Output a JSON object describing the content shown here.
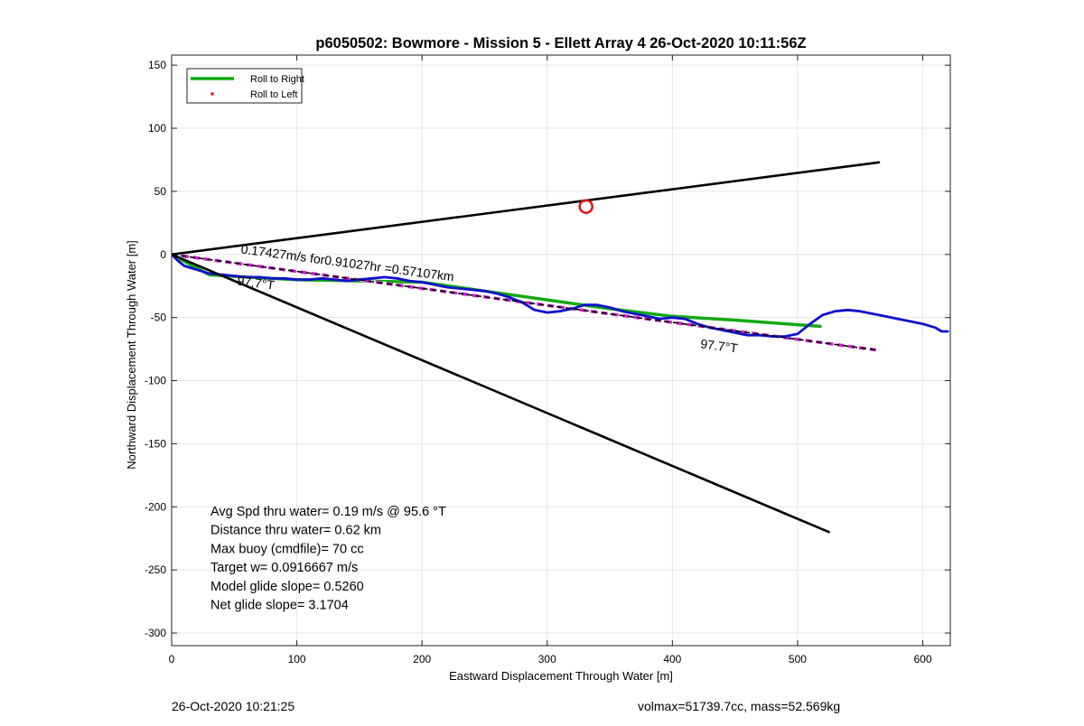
{
  "chart_data": {
    "type": "line",
    "title": "p6050502: Bowmore - Mission 5 - Ellett Array 4 26-Oct-2020 10:11:56Z",
    "xlabel": "Eastward Displacement Through Water [m]",
    "ylabel": "Northward Displacement Through Water [m]",
    "xlim": [
      0,
      622
    ],
    "ylim": [
      -310,
      158
    ],
    "xticks": [
      0,
      100,
      200,
      300,
      400,
      500,
      600
    ],
    "yticks": [
      150,
      100,
      50,
      0,
      -50,
      -100,
      -150,
      -200,
      -250,
      -300
    ],
    "grid": true,
    "legend": {
      "position": "top-left",
      "entries": [
        {
          "label": "Roll to Right",
          "color": "#11aa11",
          "style": "line"
        },
        {
          "label": "Roll to Left",
          "color": "#dd1111",
          "style": "dot"
        }
      ]
    },
    "series": [
      {
        "name": "Roll to Right",
        "color": "#11aa11",
        "x": [
          0,
          30,
          60,
          100,
          150,
          200,
          250,
          300,
          350,
          400,
          450,
          518
        ],
        "y": [
          0,
          -16,
          -18,
          -20,
          -21,
          -22,
          -29,
          -36,
          -43,
          -49,
          -52,
          -57
        ]
      },
      {
        "color": "#ffffff",
        "x": [
          0,
          565
        ],
        "y": [
          0,
          -76
        ]
      },
      {
        "color": "#cc22cc",
        "x": [
          0,
          565
        ],
        "y": [
          0,
          -76
        ]
      },
      {
        "color": "#1111cc",
        "x": [
          0,
          5,
          10,
          20,
          30,
          40,
          50,
          60,
          70,
          80,
          90,
          100,
          110,
          120,
          130,
          140,
          150,
          160,
          170,
          180,
          190,
          200,
          210,
          220,
          230,
          240,
          250,
          260,
          270,
          280,
          290,
          300,
          310,
          320,
          330,
          340,
          350,
          360,
          370,
          380,
          390,
          400,
          410,
          420,
          430,
          440,
          450,
          460,
          470,
          480,
          490,
          500,
          510,
          520,
          530,
          540,
          550,
          560,
          570,
          580,
          590,
          600,
          610,
          615,
          620
        ],
        "y": [
          0,
          -5,
          -9,
          -12,
          -15,
          -16,
          -17,
          -18,
          -18,
          -19,
          -19,
          -20,
          -20,
          -19,
          -20,
          -21,
          -20,
          -19,
          -18,
          -19,
          -21,
          -22,
          -24,
          -26,
          -27,
          -28,
          -29,
          -31,
          -34,
          -38,
          -44,
          -46,
          -45,
          -43,
          -40,
          -40,
          -42,
          -45,
          -47,
          -49,
          -51,
          -50,
          -51,
          -55,
          -58,
          -60,
          -62,
          -64,
          -64,
          -65,
          -65,
          -63,
          -55,
          -48,
          -45,
          -44,
          -45,
          -47,
          -49,
          -51,
          -53,
          -55,
          -58,
          -61,
          -61
        ]
      },
      {
        "color": "#000000",
        "x": [
          0,
          565
        ],
        "y": [
          0,
          73
        ]
      },
      {
        "color": "#000000",
        "x": [
          0,
          525
        ],
        "y": [
          0,
          -220
        ]
      },
      {
        "color": "#000000",
        "x": [
          0,
          565
        ],
        "y": [
          0,
          -76
        ]
      }
    ],
    "markers": [
      {
        "x": 331,
        "y": 38,
        "color": "#dd1111",
        "shape": "circle"
      }
    ],
    "annotations": [
      {
        "text": "0.17427m/s for0.91027hr =0.57107km",
        "x": 55,
        "y": 1,
        "rotate": 7.5
      },
      {
        "text": "97.7°T",
        "x": 52,
        "y": -24,
        "rotate": 7.5
      },
      {
        "text": "97.7°T",
        "x": 422,
        "y": -74,
        "rotate": 7.5
      }
    ],
    "stats": [
      "Avg Spd thru water=  0.19 m/s @  95.6 °T",
      "Distance thru water=  0.62 km",
      "Max buoy (cmdfile)= 70 cc",
      "Target w= 0.0916667 m/s",
      "Model glide slope= 0.5260",
      "Net glide slope= 3.1704"
    ]
  },
  "footer": {
    "timestamp": "26-Oct-2020 10:21:25",
    "info": "volmax=51739.7cc, mass=52.569kg"
  }
}
